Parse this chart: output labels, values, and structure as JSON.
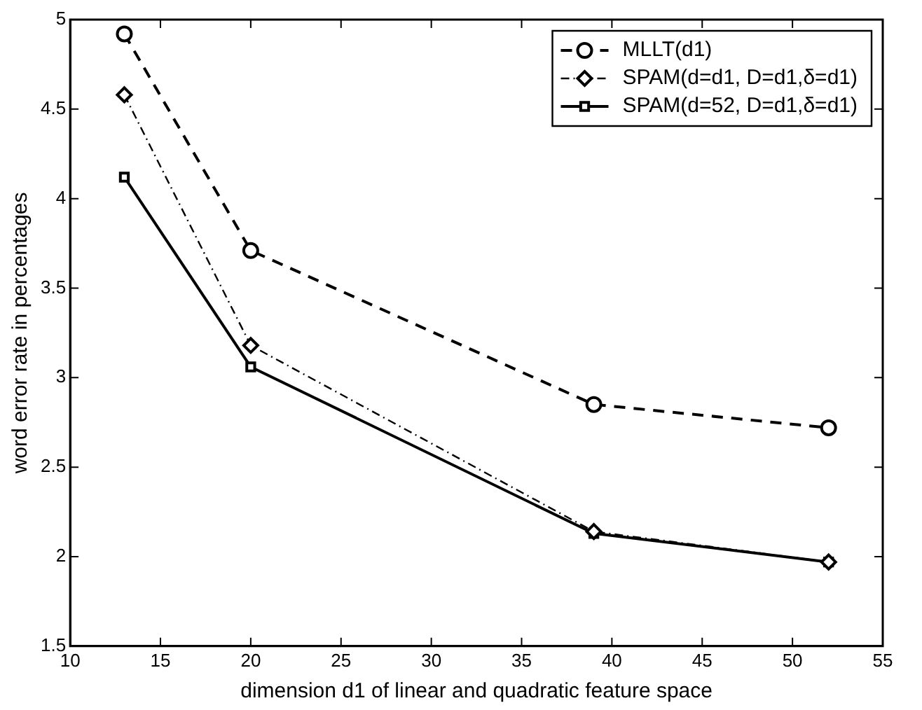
{
  "chart_data": {
    "type": "line",
    "xlabel": "dimension d1 of linear and quadratic feature space",
    "ylabel": "word error rate in percentages",
    "x": [
      13,
      20,
      39,
      52
    ],
    "series": [
      {
        "name": "MLLT(d1)",
        "color": "#000000",
        "values": [
          4.92,
          3.71,
          2.85,
          2.72
        ],
        "marker": "circle",
        "line_style": "dashed"
      },
      {
        "name": "SPAM(d=d1, D=d1,δ=d1)",
        "color": "#000000",
        "values": [
          4.58,
          3.18,
          2.14,
          1.97
        ],
        "marker": "diamond",
        "line_style": "dotted"
      },
      {
        "name": "SPAM(d=52, D=d1,δ=d1)",
        "color": "#000000",
        "values": [
          4.12,
          3.06,
          2.13,
          1.97
        ],
        "marker": "square",
        "line_style": "solid"
      }
    ],
    "xlim": [
      10,
      55
    ],
    "xticks": [
      10,
      15,
      20,
      25,
      30,
      35,
      40,
      45,
      50,
      55
    ],
    "ylim": [
      1.5,
      5
    ],
    "yticks": [
      1.5,
      2,
      2.5,
      3,
      3.5,
      4,
      4.5,
      5
    ],
    "grid": false,
    "legend": "top right"
  }
}
